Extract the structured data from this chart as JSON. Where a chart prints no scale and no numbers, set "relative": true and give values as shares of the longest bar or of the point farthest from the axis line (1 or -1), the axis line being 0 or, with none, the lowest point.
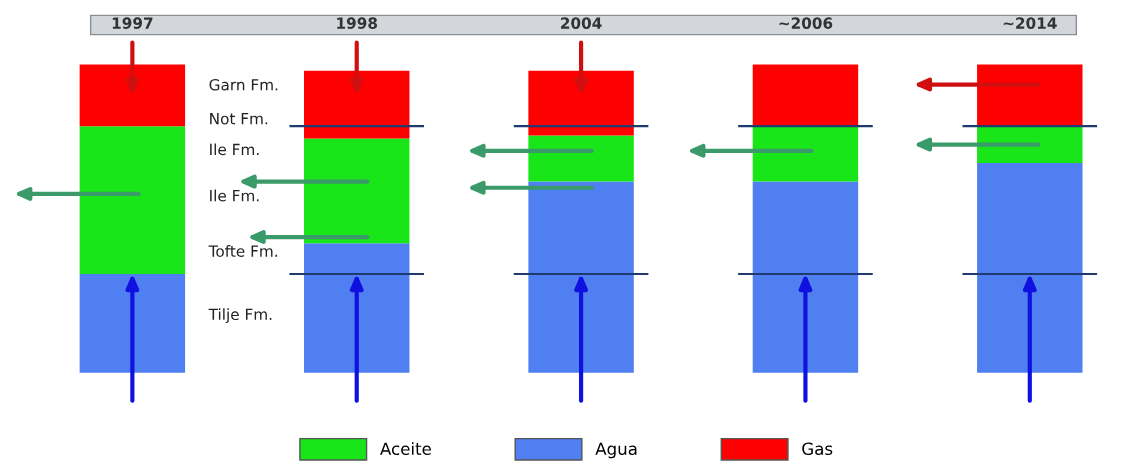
{
  "chart_data": {
    "type": "bar",
    "stacked": true,
    "relative": true,
    "categories": [
      "1997",
      "1998",
      "2004",
      "~2006",
      "~2014"
    ],
    "series": [
      {
        "name": "Agua",
        "color": "#4f7ff0",
        "values": [
          0.32,
          0.42,
          0.62,
          0.62,
          0.68
        ]
      },
      {
        "name": "Aceite",
        "color": "#19e619",
        "values": [
          0.48,
          0.34,
          0.15,
          0.18,
          0.12
        ]
      },
      {
        "name": "Gas",
        "color": "#ff0000",
        "values": [
          0.2,
          0.22,
          0.21,
          0.2,
          0.2
        ]
      }
    ],
    "ref_lines": [
      {
        "axis": "y",
        "value": 0.8,
        "color": "#1f3a6e"
      },
      {
        "axis": "y",
        "value": 0.32,
        "color": "#1f3a6e"
      }
    ],
    "annotations": [
      "Garn Fm.",
      "Not Fm.",
      "Ile Fm.",
      "Ile Fm.",
      "Tofte Fm.",
      "Tilje Fm."
    ],
    "legend": "bottom",
    "grid": false
  }
}
